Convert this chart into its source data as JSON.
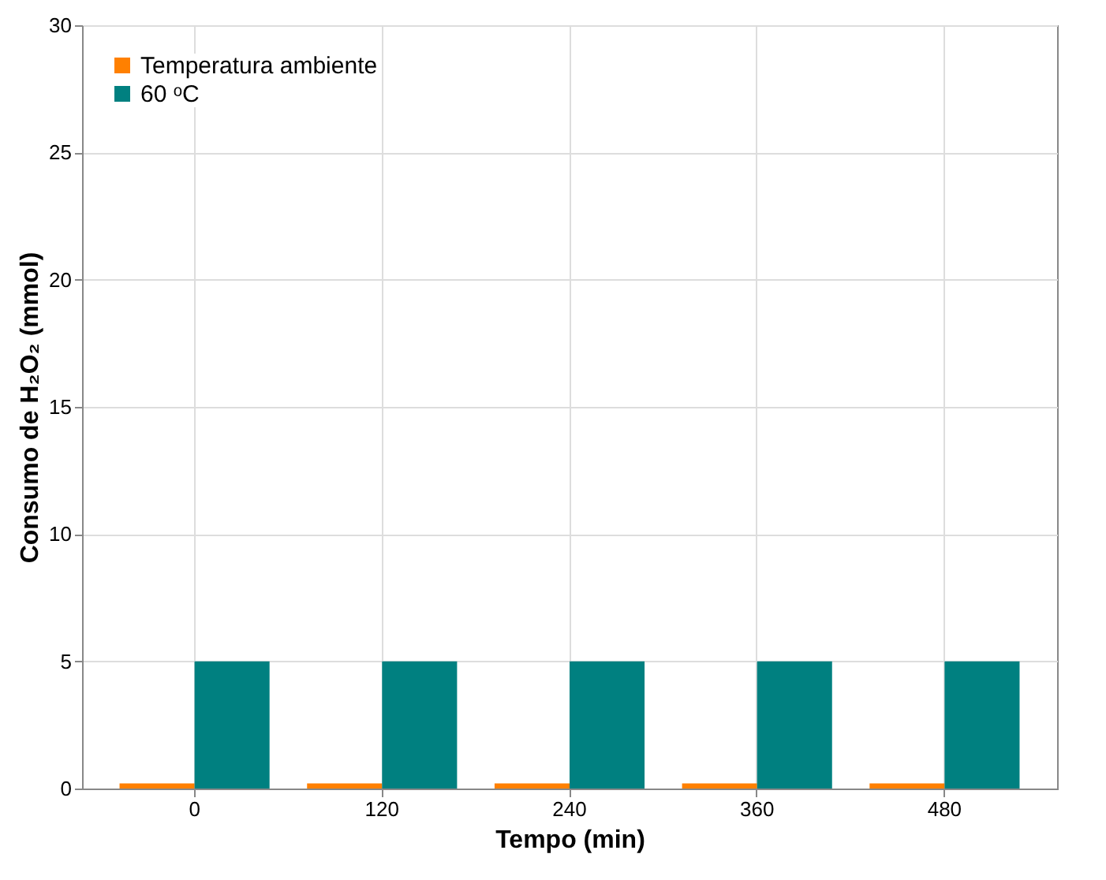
{
  "chart_data": {
    "type": "bar",
    "xlabel": "Tempo (min)",
    "ylabel": "Consumo de H₂O₂ (mmol)",
    "categories": [
      "0",
      "120",
      "240",
      "360",
      "480"
    ],
    "series": [
      {
        "name": "Temperatura ambiente",
        "color": "#ff8000",
        "values": [
          0.2,
          0.2,
          0.2,
          0.2,
          0.2
        ]
      },
      {
        "name": "60 ᵒC",
        "color": "#008080",
        "values": [
          5,
          5,
          5,
          5,
          5
        ]
      }
    ],
    "ylim": [
      0,
      30
    ],
    "yticks": [
      0,
      5,
      10,
      15,
      20,
      25,
      30
    ],
    "grid": true,
    "legend": "top left"
  }
}
